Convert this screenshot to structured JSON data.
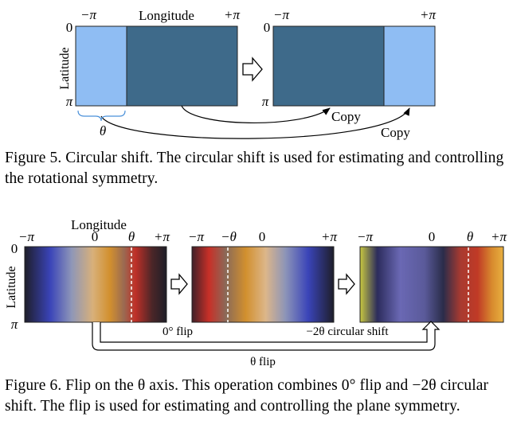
{
  "figure5": {
    "longitude_label": "Longitude",
    "latitude_label": "Latitude",
    "neg_pi": "−π",
    "pos_pi": "+π",
    "zero": "0",
    "pi": "π",
    "theta": "θ",
    "copy_top": "Copy",
    "copy_bottom": "Copy",
    "colors": {
      "light": "#8fbdf3",
      "dark": "#3e6a8a"
    },
    "caption": "Figure 5. Circular shift. The circular shift is used for estimating and controlling the rotational symmetry."
  },
  "figure6": {
    "longitude_label": "Longitude",
    "latitude_label": "Latitude",
    "neg_pi": "−π",
    "pos_pi": "+π",
    "zero": "0",
    "pi": "π",
    "theta": "θ",
    "neg_theta": "−θ",
    "flip_label": "0° flip",
    "shift_label": "−2θ circular shift",
    "theta_flip_label": "θ flip",
    "caption": "Figure 6. Flip on the θ axis. This operation combines 0° flip and −2θ circular shift. The flip is used for estimating and controlling the plane symmetry."
  }
}
